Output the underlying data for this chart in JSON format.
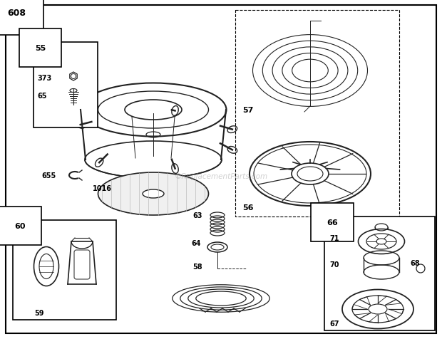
{
  "bg_color": "#ffffff",
  "line_color": "#222222",
  "watermark": "©ReplacementParts.com"
}
